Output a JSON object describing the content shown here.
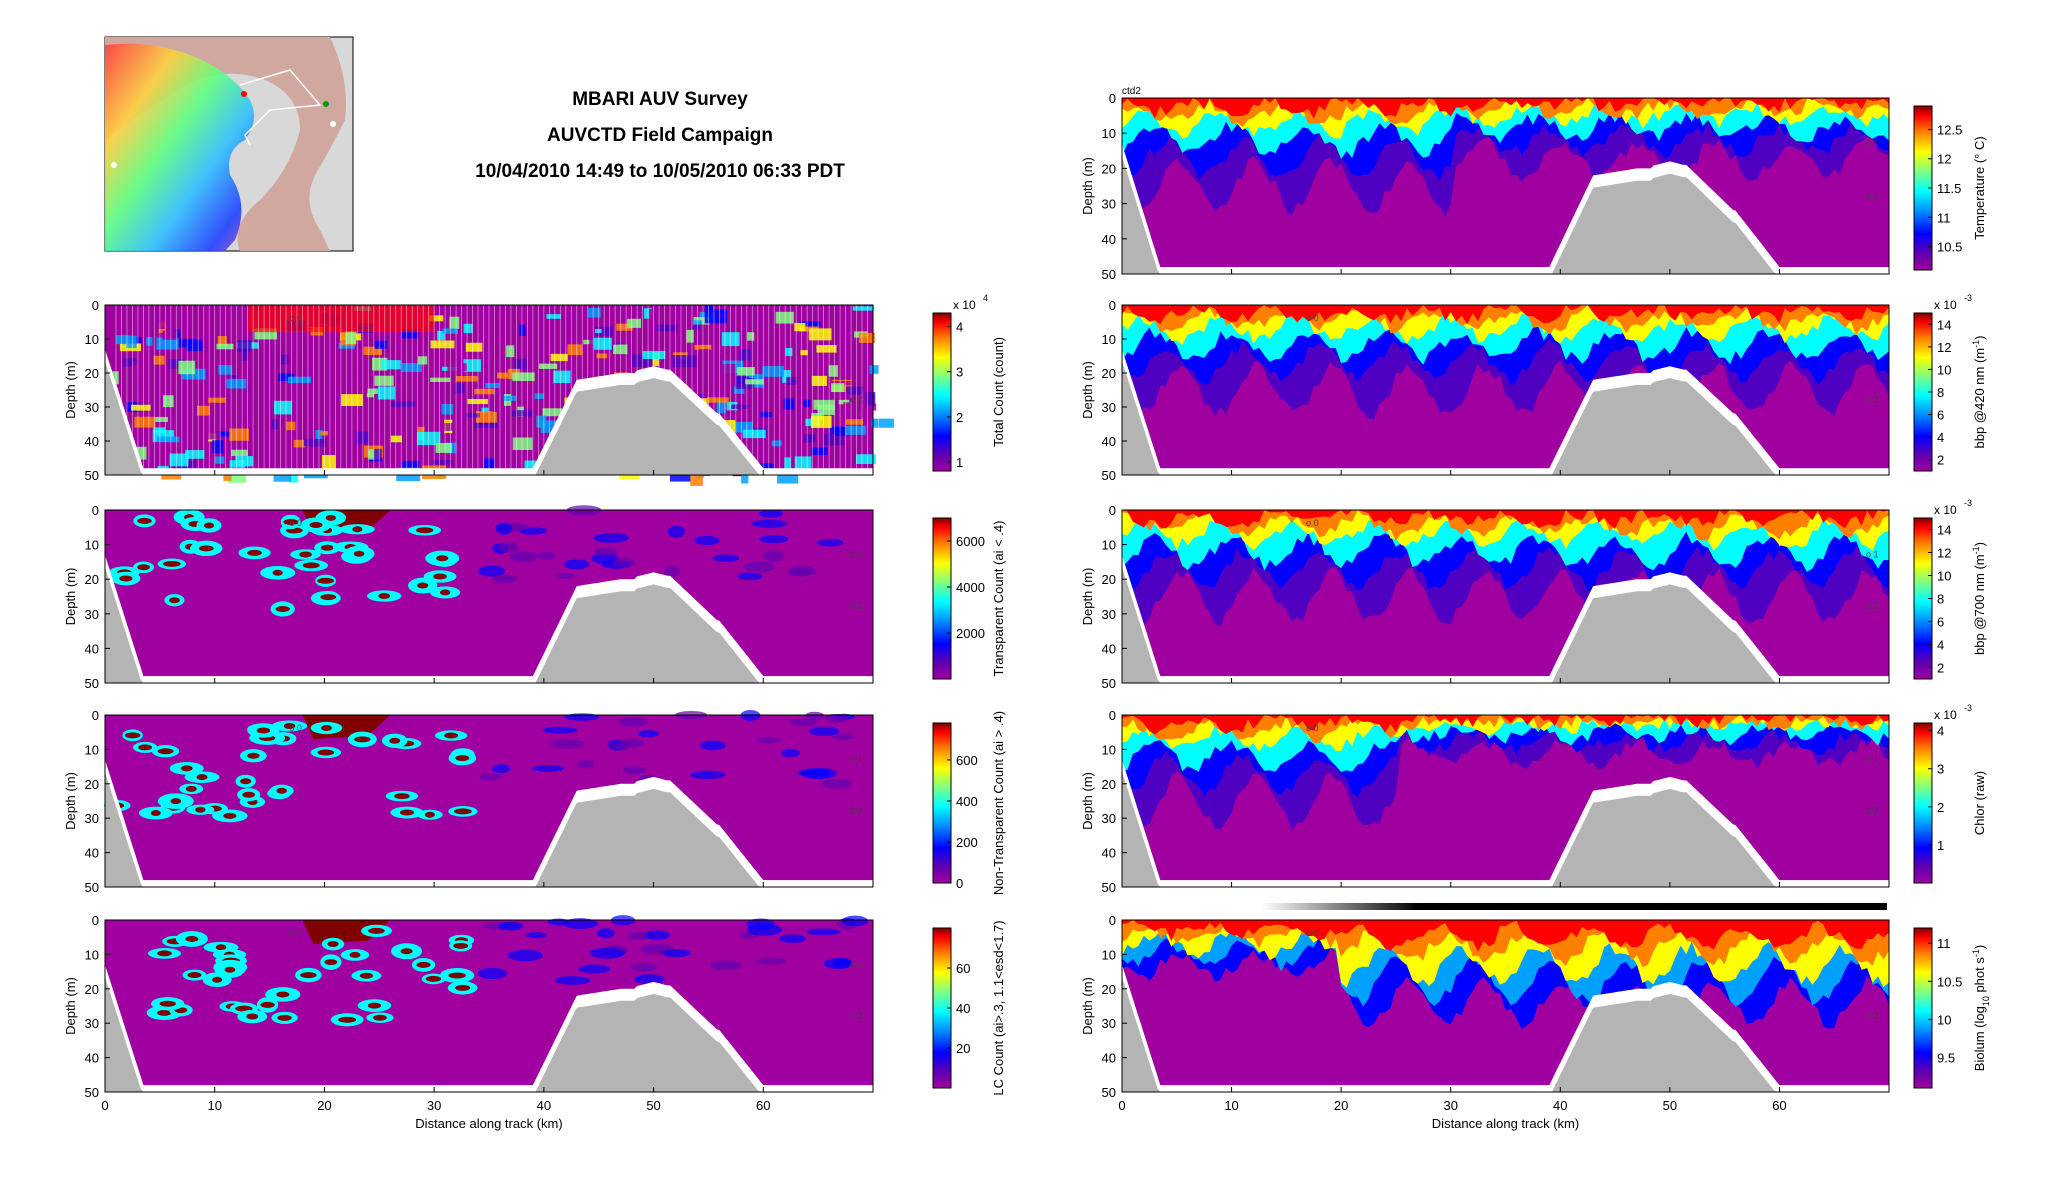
{
  "header": {
    "line1": "MBARI AUV Survey",
    "line2": "AUVCTD Field Campaign",
    "line3": "10/04/2010 14:49 to 10/05/2010 06:33 PDT"
  },
  "inset_map": {
    "description_visible": "",
    "land_color": "#d8d8d8",
    "deep_color": "#d0a8a0"
  },
  "common": {
    "depth_label": "Depth (m)",
    "distance_label": "Distance along track (km)",
    "depth_ticks": [
      0,
      10,
      20,
      30,
      40,
      50
    ],
    "distance_ticks": [
      0,
      10,
      20,
      30,
      40,
      50,
      60
    ],
    "xlim": [
      0,
      70
    ],
    "ylim": [
      0,
      50
    ]
  },
  "chart_data": [
    {
      "type": "heatmap",
      "panel": "left-1",
      "colorbar_label": "Total Count (count)",
      "colorbar_ticks": [
        "1",
        "2",
        "3",
        "4"
      ],
      "colorbar_range": [
        0.8,
        4.3
      ],
      "exponent": "x 10",
      "exponent_power": "4",
      "markers": [
        "o 0",
        "o 2"
      ],
      "xlabel": "",
      "ylabel": "Depth (m)"
    },
    {
      "type": "heatmap",
      "panel": "left-2",
      "colorbar_label": "Transparent Count (ai < .4)",
      "colorbar_ticks": [
        "2000",
        "4000",
        "6000"
      ],
      "colorbar_range": [
        0,
        7000
      ],
      "markers": [
        "o 0",
        "o 1",
        "o 2"
      ],
      "xlabel": "",
      "ylabel": "Depth (m)"
    },
    {
      "type": "heatmap",
      "panel": "left-3",
      "colorbar_label": "Non-Transparent Count (ai > .4)",
      "colorbar_ticks": [
        "0",
        "200",
        "400",
        "600"
      ],
      "colorbar_range": [
        0,
        780
      ],
      "markers": [
        "o 0",
        "o 1",
        "o 2"
      ],
      "xlabel": "",
      "ylabel": "Depth (m)"
    },
    {
      "type": "heatmap",
      "panel": "left-4",
      "colorbar_label": "LC Count (ai>.3, 1.1<esd<1.7)",
      "colorbar_ticks": [
        "20",
        "40",
        "60"
      ],
      "colorbar_range": [
        0,
        80
      ],
      "markers": [
        "o 0",
        "o 1",
        "o 2"
      ],
      "xlabel": "Distance along track (km)",
      "ylabel": "Depth (m)"
    },
    {
      "type": "heatmap",
      "panel": "right-1",
      "corner_label": "ctd2",
      "colorbar_label": "Temperature (° C)",
      "colorbar_ticks": [
        "10.5",
        "11",
        "11.5",
        "12",
        "12.5"
      ],
      "colorbar_range": [
        10.1,
        12.9
      ],
      "markers": [
        "o 1",
        "o 2"
      ],
      "xlabel": "",
      "ylabel": "Depth (m)"
    },
    {
      "type": "heatmap",
      "panel": "right-2",
      "colorbar_label": "bbp @420 nm (m",
      "colorbar_label_sup": "-1",
      "colorbar_ticks": [
        "2",
        "4",
        "6",
        "8",
        "10",
        "12",
        "14"
      ],
      "colorbar_range": [
        1,
        15
      ],
      "exponent": "x 10",
      "exponent_power": "-3",
      "markers": [
        "o 0",
        "o 2"
      ],
      "xlabel": "",
      "ylabel": "Depth (m)"
    },
    {
      "type": "heatmap",
      "panel": "right-3",
      "colorbar_label": "bbp @700 nm (m",
      "colorbar_label_sup": "-1",
      "colorbar_ticks": [
        "2",
        "4",
        "6",
        "8",
        "10",
        "12",
        "14"
      ],
      "colorbar_range": [
        1,
        15
      ],
      "exponent": "x 10",
      "exponent_power": "-3",
      "markers": [
        "o 0",
        "o 1",
        "o 2"
      ],
      "xlabel": "",
      "ylabel": "Depth (m)"
    },
    {
      "type": "heatmap",
      "panel": "right-4",
      "colorbar_label": "Chlor (raw)",
      "colorbar_ticks": [
        "1",
        "2",
        "3",
        "4"
      ],
      "colorbar_range": [
        0,
        4.2
      ],
      "exponent": "x 10",
      "exponent_power": "-3",
      "markers": [
        "o 0",
        "o 1",
        "o 2"
      ],
      "xlabel": "",
      "ylabel": "Depth (m)"
    },
    {
      "type": "heatmap",
      "panel": "right-5",
      "colorbar_label": "Biolum (log",
      "colorbar_label_sub": "10",
      "colorbar_label_mid": " phot s",
      "colorbar_label_sup": "-1",
      "colorbar_label_end": ")",
      "colorbar_ticks": [
        "9.5",
        "10",
        "10.5",
        "11"
      ],
      "colorbar_range": [
        9.1,
        11.2
      ],
      "markers": [
        "o 0",
        "o 2"
      ],
      "xlabel": "Distance along track (km)",
      "ylabel": "Depth (m)"
    }
  ],
  "colors": {
    "seafloor": "#b4b4b4",
    "jet": [
      "#a000a0",
      "#5000c0",
      "#0000ff",
      "#00a0ff",
      "#00ffff",
      "#80ff80",
      "#ffff00",
      "#ff8000",
      "#ff0000",
      "#800000"
    ]
  }
}
